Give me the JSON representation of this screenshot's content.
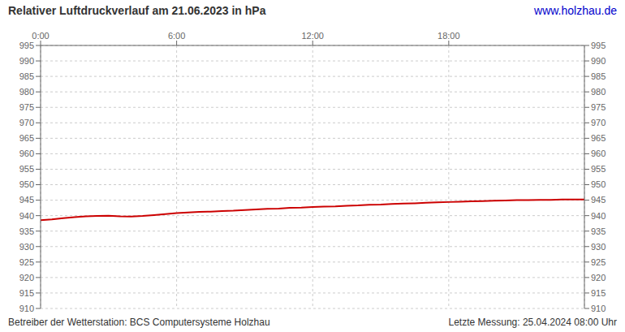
{
  "chart_data": {
    "type": "line",
    "title": "Relativer Luftdruckverlauf am 21.06.2023 in hPa",
    "annotations": [
      "www.holzhau.de",
      "Betreiber der Wetterstation: BCS Computersysteme Holzhau",
      "Letzte Messung: 25.04.2024 08:00 Uhr"
    ],
    "x": [
      0,
      30,
      60,
      90,
      120,
      150,
      180,
      210,
      240,
      270,
      300,
      330,
      360,
      390,
      420,
      450,
      480,
      510,
      540,
      570,
      600,
      630,
      660,
      690,
      720,
      750,
      780,
      810,
      840,
      870,
      900,
      930,
      960,
      990,
      1020,
      1050,
      1080,
      1110,
      1140,
      1170,
      1200,
      1230,
      1260,
      1290,
      1320,
      1350,
      1380,
      1410,
      1439
    ],
    "values": [
      938.5,
      938.8,
      939.2,
      939.5,
      939.8,
      939.9,
      940.0,
      939.8,
      939.7,
      939.9,
      940.2,
      940.5,
      940.8,
      941.0,
      941.2,
      941.3,
      941.5,
      941.6,
      941.8,
      942.0,
      942.2,
      942.3,
      942.5,
      942.6,
      942.8,
      942.9,
      943.0,
      943.2,
      943.3,
      943.5,
      943.6,
      943.8,
      943.9,
      944.0,
      944.2,
      944.3,
      944.4,
      944.5,
      944.6,
      944.7,
      944.8,
      944.9,
      945.0,
      945.0,
      945.1,
      945.1,
      945.2,
      945.2,
      945.2
    ],
    "color": "#cc0000",
    "xlim": [
      0,
      1439
    ],
    "xticks": [
      {
        "value": 0,
        "label": "0:00"
      },
      {
        "value": 360,
        "label": "6:00"
      },
      {
        "value": 720,
        "label": "12:00"
      },
      {
        "value": 1080,
        "label": "18:00"
      }
    ],
    "ylim": [
      910,
      995
    ],
    "yticks": [
      910,
      915,
      920,
      925,
      930,
      935,
      940,
      945,
      950,
      955,
      960,
      965,
      970,
      975,
      980,
      985,
      990,
      995
    ],
    "grid": true
  }
}
